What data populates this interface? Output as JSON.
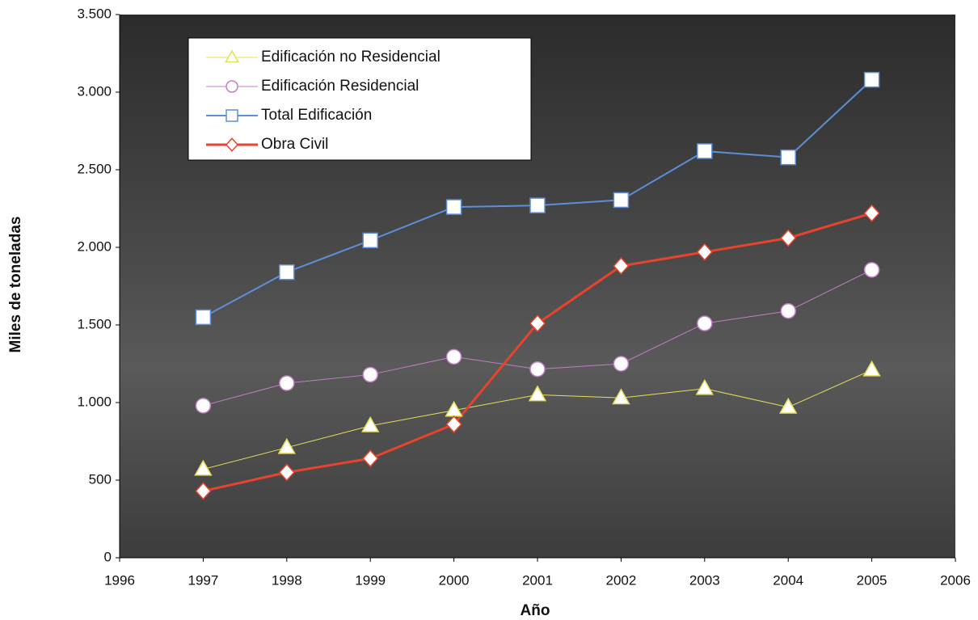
{
  "chart_data": {
    "type": "line",
    "xlabel": "Año",
    "ylabel": "Miles de toneladas",
    "x": [
      1997,
      1998,
      1999,
      2000,
      2001,
      2002,
      2003,
      2004,
      2005
    ],
    "series": [
      {
        "name": "Edificación no Residencial",
        "color": "#e6df5a",
        "marker": "triangle",
        "width": 1,
        "values": [
          570,
          710,
          850,
          950,
          1050,
          1030,
          1090,
          970,
          1210
        ]
      },
      {
        "name": "Edificación Residencial",
        "color": "#c27fc4",
        "marker": "circle",
        "width": 1,
        "values": [
          980,
          1125,
          1180,
          1295,
          1215,
          1250,
          1510,
          1590,
          1855
        ]
      },
      {
        "name": "Total Edificación",
        "color": "#5b8fd8",
        "marker": "square",
        "width": 2,
        "values": [
          1550,
          1840,
          2045,
          2260,
          2270,
          2305,
          2620,
          2580,
          3080
        ]
      },
      {
        "name": "Obra Civil",
        "color": "#e8432c",
        "marker": "diamond",
        "width": 3,
        "values": [
          430,
          550,
          640,
          860,
          1510,
          1880,
          1970,
          2060,
          2220
        ]
      }
    ],
    "xlim": [
      1996,
      2006
    ],
    "xticks": [
      1996,
      1997,
      1998,
      1999,
      2000,
      2001,
      2002,
      2003,
      2004,
      2005,
      2006
    ],
    "ylim": [
      0,
      3500
    ],
    "yticks": [
      0,
      500,
      {
        "value": 1000,
        "label": "1.000"
      },
      {
        "value": 1500,
        "label": "1.500"
      },
      {
        "value": 2000,
        "label": "2.000"
      },
      {
        "value": 2500,
        "label": "2.500"
      },
      {
        "value": 3000,
        "label": "3.000"
      },
      {
        "value": 3500,
        "label": "3.500"
      }
    ],
    "legend": "upper left"
  }
}
